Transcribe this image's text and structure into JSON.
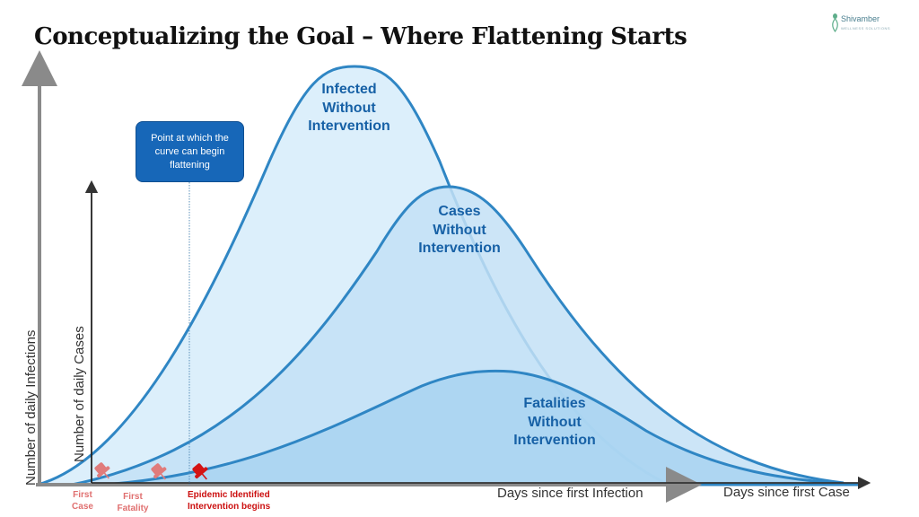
{
  "title": "Conceptualizing the Goal – Where Flattening Starts",
  "logo": {
    "name": "Shivamber",
    "tagline": "WELLNESS SOLUTIONS"
  },
  "callout": {
    "lines": [
      "Point at which the",
      "curve can begin",
      "flattening"
    ]
  },
  "curves": [
    {
      "key": "infected",
      "lines": [
        "Infected",
        "Without",
        "Intervention"
      ],
      "fill": "#d6ecfa",
      "stroke": "#2f86c4"
    },
    {
      "key": "cases",
      "lines": [
        "Cases",
        "Without",
        "Intervention"
      ],
      "fill": "#c3e1f6",
      "stroke": "#2f86c4"
    },
    {
      "key": "fatalities",
      "lines": [
        "Fatalities",
        "Without",
        "Intervention"
      ],
      "fill": "#a8d3f1",
      "stroke": "#2f86c4"
    }
  ],
  "axes": {
    "outer_y": "Number of daily Infections",
    "inner_y": "Number of daily Cases",
    "outer_x": "Days since first Case",
    "inner_x": "Days since first Infection"
  },
  "markers": [
    {
      "key": "first_case",
      "lines": [
        "First",
        "Case"
      ],
      "color": "#e07b7b"
    },
    {
      "key": "first_fatality",
      "lines": [
        "First",
        "Fatality"
      ],
      "color": "#e07b7b"
    },
    {
      "key": "epidemic",
      "lines": [
        "Epidemic Identified",
        "Intervention begins"
      ],
      "color": "#d41414"
    }
  ],
  "colors": {
    "outer_axis": "#8a8a8a",
    "inner_axis": "#222222",
    "callout": "#1767b8",
    "label": "#1761a6"
  }
}
